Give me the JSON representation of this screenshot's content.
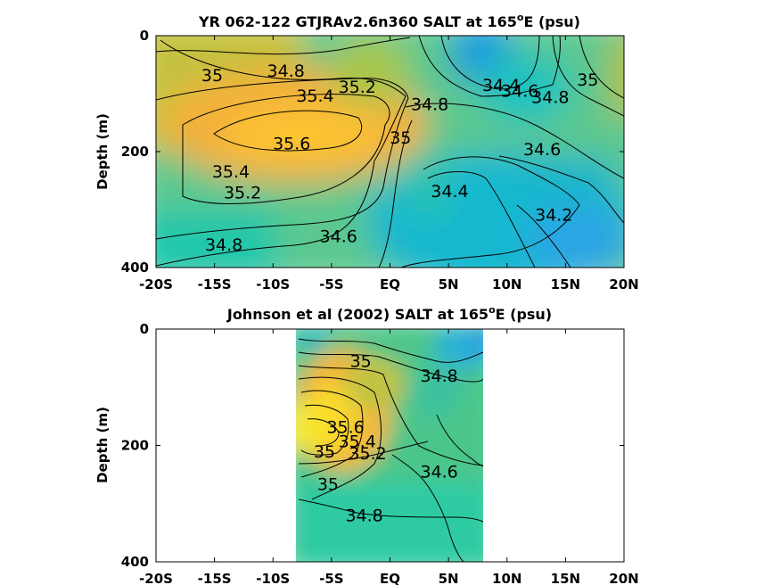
{
  "chart_data": [
    {
      "type": "contour",
      "title_main": "YR 062-122 GTJRAv2.6n360 SALT at 165",
      "title_sup": "o",
      "title_end": "E (psu)",
      "ylabel": "Depth (m)",
      "xlim": [
        -20,
        20
      ],
      "ylim": [
        0,
        400
      ],
      "y_reversed": true,
      "x_ticks": [
        -20,
        -15,
        -10,
        -5,
        0,
        5,
        10,
        15,
        20
      ],
      "x_tick_labels": [
        "-20S",
        "-15S",
        "-10S",
        "-5S",
        "EQ",
        "5N",
        "10N",
        "15N",
        "20N"
      ],
      "y_ticks": [
        0,
        200,
        400
      ],
      "y_tick_labels": [
        "0",
        "200",
        "400"
      ],
      "data_extent_x": [
        -20,
        20
      ],
      "contour_labels": [
        {
          "text": "35",
          "lat": -15.2,
          "depth": 70
        },
        {
          "text": "34.8",
          "lat": -8.9,
          "depth": 62
        },
        {
          "text": "35.4",
          "lat": -6.4,
          "depth": 105
        },
        {
          "text": "35.2",
          "lat": -2.8,
          "depth": 90
        },
        {
          "text": "34.8",
          "lat": 3.4,
          "depth": 120
        },
        {
          "text": "35",
          "lat": 0.9,
          "depth": 178
        },
        {
          "text": "35.6",
          "lat": -8.4,
          "depth": 188
        },
        {
          "text": "35.4",
          "lat": -13.6,
          "depth": 236
        },
        {
          "text": "35.2",
          "lat": -12.6,
          "depth": 272
        },
        {
          "text": "34.4",
          "lat": 9.5,
          "depth": 87
        },
        {
          "text": "34.6",
          "lat": 11.1,
          "depth": 97
        },
        {
          "text": "34.8",
          "lat": 13.7,
          "depth": 108
        },
        {
          "text": "35",
          "lat": 16.9,
          "depth": 78
        },
        {
          "text": "34.6",
          "lat": 13.0,
          "depth": 198
        },
        {
          "text": "34.4",
          "lat": 5.1,
          "depth": 270
        },
        {
          "text": "34.2",
          "lat": 14.0,
          "depth": 311
        },
        {
          "text": "34.6",
          "lat": -4.4,
          "depth": 348
        },
        {
          "text": "34.8",
          "lat": -14.2,
          "depth": 362
        }
      ]
    },
    {
      "type": "contour",
      "title_main": "Johnson et al (2002) SALT at 165",
      "title_sup": "o",
      "title_end": "E (psu)",
      "ylabel": "Depth (m)",
      "xlim": [
        -20,
        20
      ],
      "ylim": [
        0,
        400
      ],
      "y_reversed": true,
      "x_ticks": [
        -20,
        -15,
        -10,
        -5,
        0,
        5,
        10,
        15,
        20
      ],
      "x_tick_labels": [
        "-20S",
        "-15S",
        "-10S",
        "-5S",
        "EQ",
        "5N",
        "10N",
        "15N",
        "20N"
      ],
      "y_ticks": [
        0,
        200,
        400
      ],
      "y_tick_labels": [
        "0",
        "200",
        "400"
      ],
      "data_extent_x": [
        -8,
        8
      ],
      "contour_labels": [
        {
          "text": "35",
          "lat": -2.5,
          "depth": 57
        },
        {
          "text": "34.8",
          "lat": 4.2,
          "depth": 82
        },
        {
          "text": "35.6",
          "lat": -3.8,
          "depth": 170
        },
        {
          "text": "35.4",
          "lat": -2.8,
          "depth": 195
        },
        {
          "text": "35",
          "lat": -5.6,
          "depth": 212
        },
        {
          "text": "35.2",
          "lat": -1.9,
          "depth": 215
        },
        {
          "text": "34.6",
          "lat": 4.2,
          "depth": 247
        },
        {
          "text": "35",
          "lat": -5.3,
          "depth": 268
        },
        {
          "text": "34.8",
          "lat": -2.2,
          "depth": 322
        }
      ]
    }
  ]
}
